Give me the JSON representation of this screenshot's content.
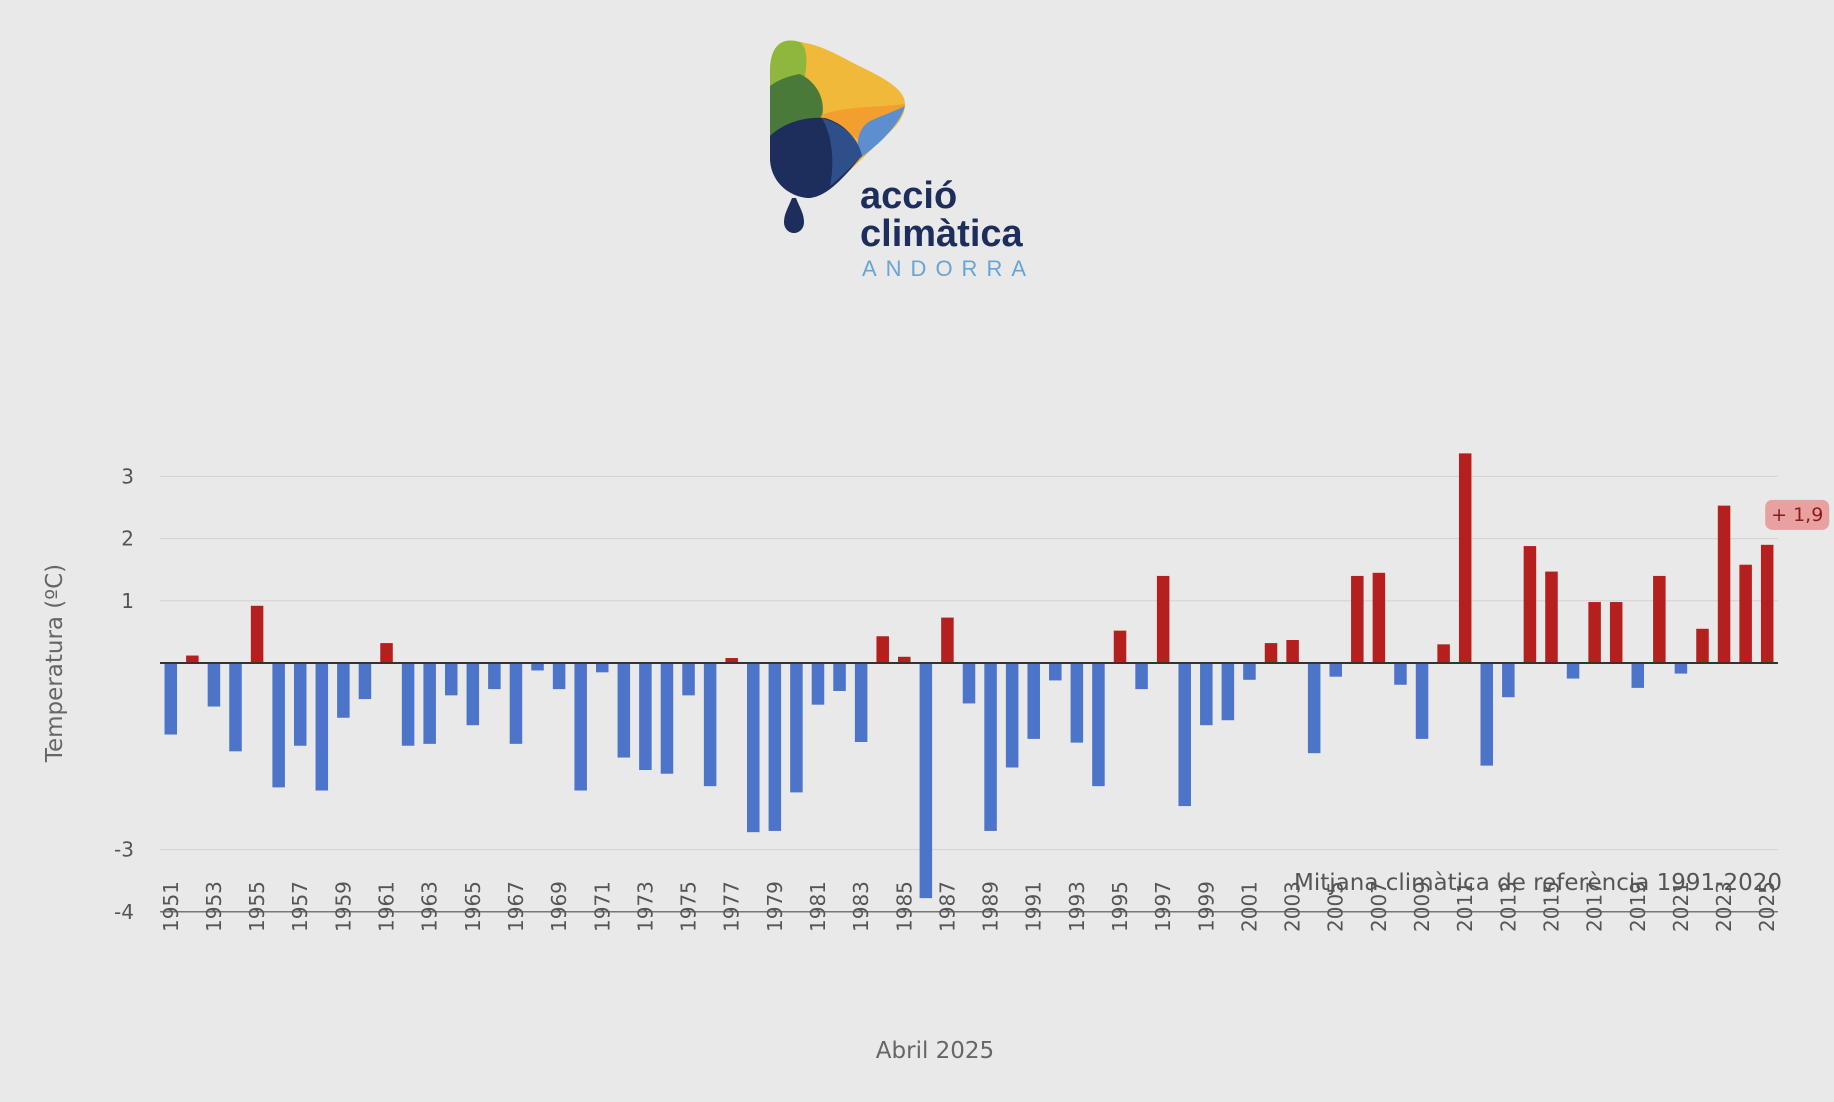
{
  "logo": {
    "line1": "acció",
    "line2": "climàtica",
    "line3": "ANDORRA"
  },
  "colors": {
    "positive": "#b5201e",
    "negative": "#4c74c8",
    "background": "#e9e9e9",
    "badge": "#e8a0a0",
    "badge_text": "#8a1b1b"
  },
  "chart_data": {
    "type": "bar",
    "title": "",
    "xlabel": "Abril 2025",
    "ylabel": "Temperatura (ºC)",
    "ylim": [
      -4,
      3.5
    ],
    "y_ticks": [
      {
        "value": 3,
        "label": "3"
      },
      {
        "value": 2,
        "label": "2"
      },
      {
        "value": 1,
        "label": "1"
      },
      {
        "value": -3,
        "label": "-3"
      },
      {
        "value": -4,
        "label": "-4"
      }
    ],
    "categories": [
      "1951",
      "1952",
      "1953",
      "1954",
      "1955",
      "1956",
      "1957",
      "1958",
      "1959",
      "1960",
      "1961",
      "1962",
      "1963",
      "1964",
      "1965",
      "1966",
      "1967",
      "1968",
      "1969",
      "1970",
      "1971",
      "1972",
      "1973",
      "1974",
      "1975",
      "1976",
      "1977",
      "1978",
      "1979",
      "1980",
      "1981",
      "1982",
      "1983",
      "1984",
      "1985",
      "1986",
      "1987",
      "1988",
      "1989",
      "1990",
      "1991",
      "1992",
      "1993",
      "1994",
      "1995",
      "1996",
      "1997",
      "1998",
      "1999",
      "2000",
      "2001",
      "2002",
      "2003",
      "2004",
      "2005",
      "2006",
      "2007",
      "2008",
      "2009",
      "2010",
      "2011",
      "2012",
      "2013",
      "2014",
      "2015",
      "2016",
      "2017",
      "2018",
      "2019",
      "2020",
      "2021",
      "2022",
      "2023",
      "2024",
      "2025"
    ],
    "tick_labels": [
      "1951",
      "1953",
      "1955",
      "1957",
      "1959",
      "1961",
      "1963",
      "1965",
      "1967",
      "1969",
      "1971",
      "1973",
      "1975",
      "1977",
      "1979",
      "1981",
      "1983",
      "1985",
      "1987",
      "1989",
      "1991",
      "1993",
      "1995",
      "1997",
      "1999",
      "2001",
      "2003",
      "2005",
      "2007",
      "2009",
      "2011",
      "2013",
      "2015",
      "2017",
      "2019",
      "2021",
      "2023",
      "2025"
    ],
    "values": [
      -1.15,
      0.12,
      -0.7,
      -1.42,
      0.92,
      -2.0,
      -1.33,
      -2.05,
      -0.88,
      -0.58,
      0.32,
      -1.33,
      -1.3,
      -0.52,
      -1.0,
      -0.42,
      -1.3,
      -0.12,
      -0.42,
      -2.05,
      -0.15,
      -1.52,
      -1.72,
      -1.78,
      -0.52,
      -1.98,
      0.08,
      -2.72,
      -2.7,
      -2.08,
      -0.67,
      -0.45,
      -1.27,
      0.43,
      0.1,
      -3.78,
      0.73,
      -0.65,
      -2.7,
      -1.68,
      -1.22,
      -0.28,
      -1.28,
      -1.98,
      0.52,
      -0.42,
      1.4,
      -2.3,
      -1.0,
      -0.92,
      -0.27,
      0.32,
      0.37,
      -1.45,
      -0.22,
      1.4,
      1.45,
      -0.35,
      -1.22,
      0.3,
      3.37,
      -1.65,
      -0.55,
      1.88,
      1.47,
      -0.25,
      0.98,
      0.98,
      -0.4,
      1.4,
      -0.17,
      0.55,
      2.53,
      1.58,
      1.9
    ],
    "annotations": {
      "reference": "Mitjana climàtica de referència 1991-2020",
      "last_value_badge": "+ 1,9"
    }
  }
}
